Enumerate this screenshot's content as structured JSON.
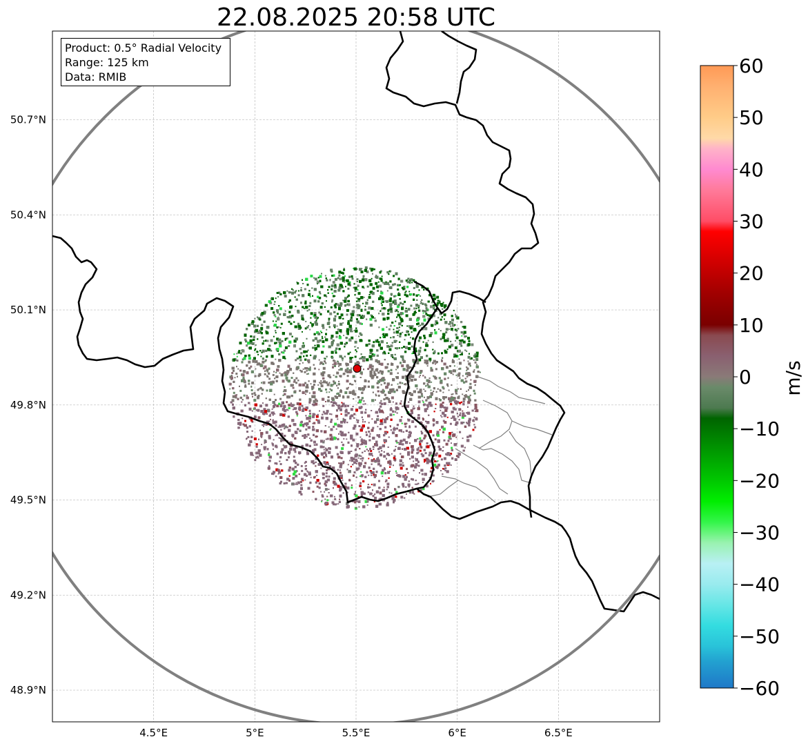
{
  "title": "22.08.2025 20:58 UTC",
  "info": {
    "product": "Product: 0.5° Radial Velocity",
    "range": "Range: 125 km",
    "data": "Data: RMIB"
  },
  "map": {
    "lon_range": [
      4.0,
      7.0
    ],
    "lat_range": [
      48.8,
      50.98
    ],
    "lon_ticks": [
      {
        "value": 4.5,
        "label": "4.5°E"
      },
      {
        "value": 5.0,
        "label": "5°E"
      },
      {
        "value": 5.5,
        "label": "5.5°E"
      },
      {
        "value": 6.0,
        "label": "6°E"
      },
      {
        "value": 6.5,
        "label": "6.5°E"
      }
    ],
    "lat_ticks": [
      {
        "value": 48.9,
        "label": "48.9°N"
      },
      {
        "value": 49.2,
        "label": "49.2°N"
      },
      {
        "value": 49.5,
        "label": "49.5°N"
      },
      {
        "value": 49.8,
        "label": "49.8°N"
      },
      {
        "value": 50.1,
        "label": "50.1°N"
      },
      {
        "value": 50.4,
        "label": "50.4°N"
      },
      {
        "value": 50.7,
        "label": "50.7°N"
      }
    ],
    "grid": true,
    "radar_site": {
      "lon": 5.505,
      "lat": 49.915
    },
    "range_km": 125,
    "colors": {
      "range_ring": "#808080",
      "border": "#000000",
      "province_border": "#808080",
      "radar_marker": "#dd0000"
    }
  },
  "colorbar": {
    "label": "m/s",
    "min": -60,
    "max": 60,
    "ticks": [
      {
        "value": 60,
        "label": "60"
      },
      {
        "value": 50,
        "label": "50"
      },
      {
        "value": 40,
        "label": "40"
      },
      {
        "value": 30,
        "label": "30"
      },
      {
        "value": 20,
        "label": "20"
      },
      {
        "value": 10,
        "label": "10"
      },
      {
        "value": 0,
        "label": "0"
      },
      {
        "value": -10,
        "label": "−10"
      },
      {
        "value": -20,
        "label": "−20"
      },
      {
        "value": -30,
        "label": "−30"
      },
      {
        "value": -40,
        "label": "−40"
      },
      {
        "value": -50,
        "label": "−50"
      },
      {
        "value": -60,
        "label": "−60"
      }
    ],
    "stops": [
      {
        "value": -60,
        "color": "#1f78c8"
      },
      {
        "value": -55,
        "color": "#22a0d0"
      },
      {
        "value": -52,
        "color": "#29c2d9"
      },
      {
        "value": -48,
        "color": "#33dce0"
      },
      {
        "value": -44,
        "color": "#66e6e6"
      },
      {
        "value": -40,
        "color": "#99ebee"
      },
      {
        "value": -36,
        "color": "#b8f0f4"
      },
      {
        "value": -32,
        "color": "#99f2b0"
      },
      {
        "value": -30,
        "color": "#66f57a"
      },
      {
        "value": -28,
        "color": "#33f54a"
      },
      {
        "value": -24,
        "color": "#00ee00"
      },
      {
        "value": -20,
        "color": "#00c800"
      },
      {
        "value": -14,
        "color": "#009600"
      },
      {
        "value": -8,
        "color": "#006400"
      },
      {
        "value": -6,
        "color": "#4d7a50"
      },
      {
        "value": -2,
        "color": "#6a8a6a"
      },
      {
        "value": 0,
        "color": "#8a7a78"
      },
      {
        "value": 4,
        "color": "#8a6070"
      },
      {
        "value": 8,
        "color": "#8a4a50"
      },
      {
        "value": 10,
        "color": "#7a0000"
      },
      {
        "value": 16,
        "color": "#a00000"
      },
      {
        "value": 22,
        "color": "#d00000"
      },
      {
        "value": 28,
        "color": "#ff0000"
      },
      {
        "value": 30,
        "color": "#ff4d66"
      },
      {
        "value": 36,
        "color": "#ff7a9a"
      },
      {
        "value": 40,
        "color": "#ff8ad0"
      },
      {
        "value": 44,
        "color": "#ffb3c8"
      },
      {
        "value": 46,
        "color": "#ffd9a8"
      },
      {
        "value": 50,
        "color": "#ffcc88"
      },
      {
        "value": 56,
        "color": "#ffb070"
      },
      {
        "value": 60,
        "color": "#ff9955"
      }
    ]
  }
}
